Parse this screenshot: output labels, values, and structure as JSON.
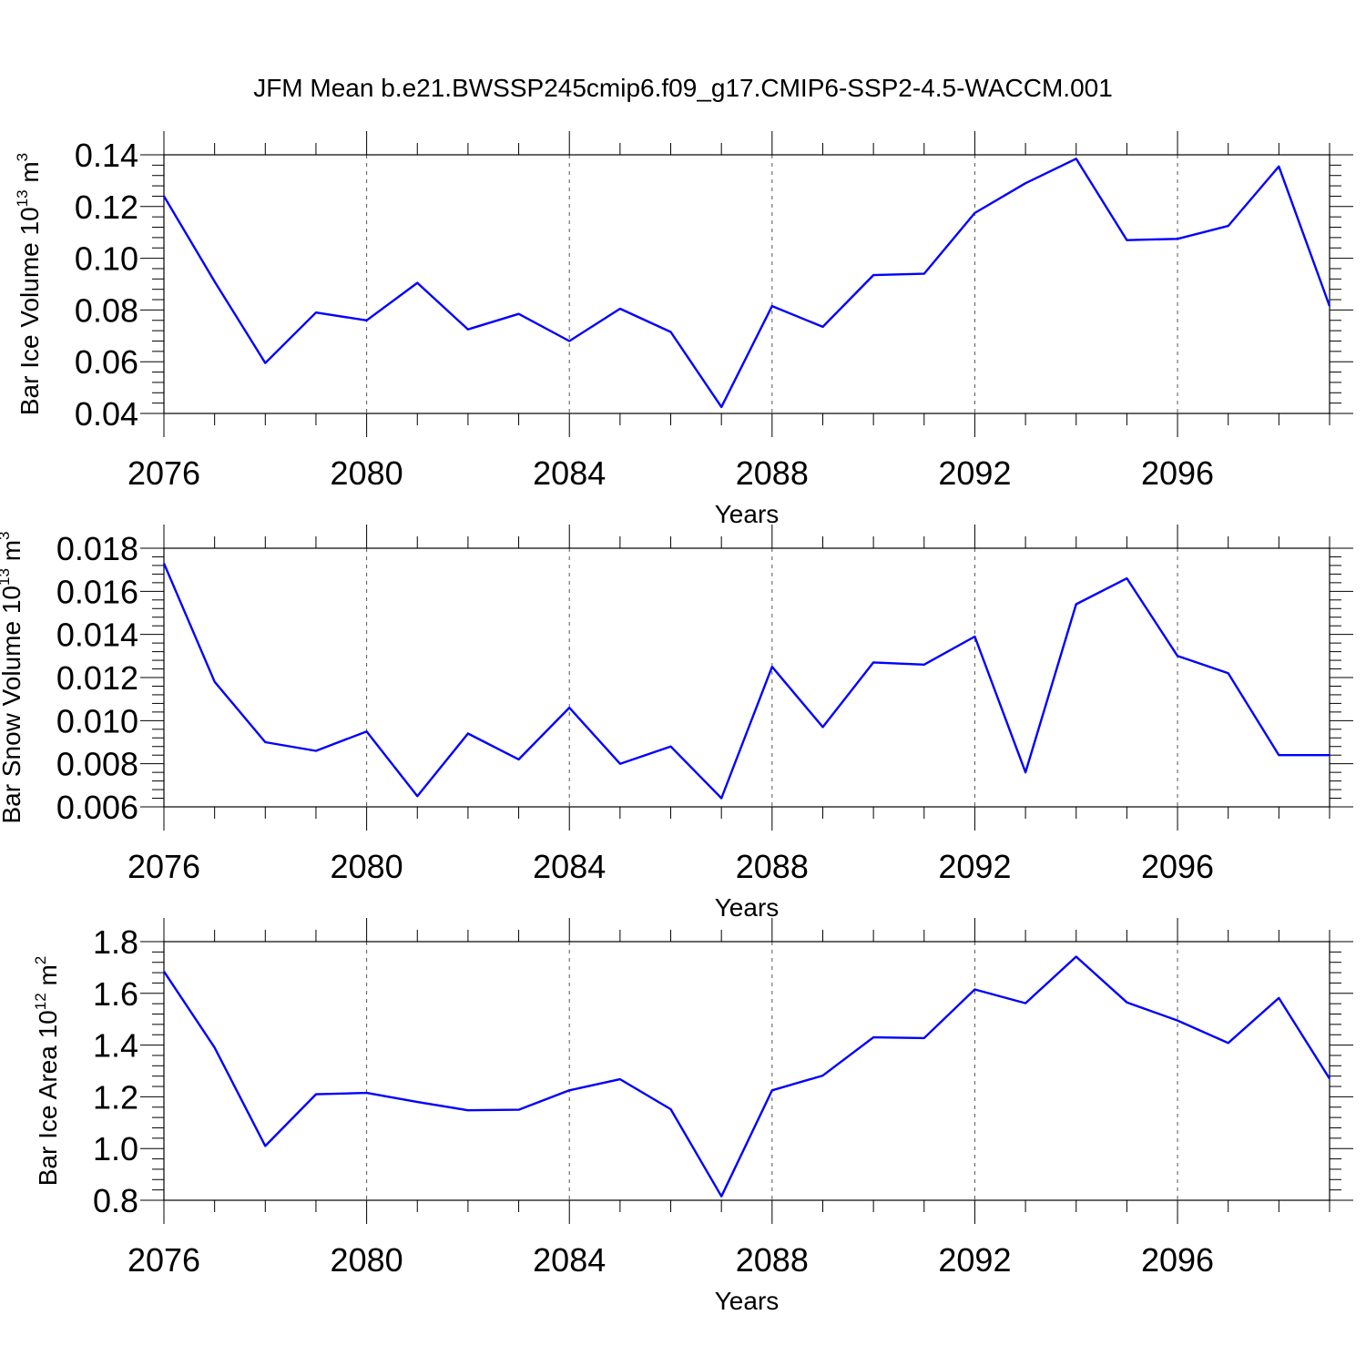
{
  "title": "JFM Mean b.e21.BWSSP245cmip6.f09_g17.CMIP6-SSP2-4.5-WACCM.001",
  "colors": {
    "line": "#0000ff",
    "axis": "#000000",
    "grid": "#555555"
  },
  "chart_data": [
    {
      "type": "line",
      "xlabel": "Years",
      "ylabel": {
        "text": "Bar Ice Volume 10",
        "exp": "13",
        "unit": " m",
        "unit_exp": "3"
      },
      "x": [
        2076,
        2077,
        2078,
        2079,
        2080,
        2081,
        2082,
        2083,
        2084,
        2085,
        2086,
        2087,
        2088,
        2089,
        2090,
        2091,
        2092,
        2093,
        2094,
        2095,
        2096,
        2097,
        2098,
        2099
      ],
      "values": [
        0.124,
        0.091,
        0.0595,
        0.079,
        0.076,
        0.0905,
        0.0725,
        0.0785,
        0.068,
        0.0805,
        0.0715,
        0.0425,
        0.0815,
        0.0735,
        0.0935,
        0.094,
        0.1175,
        0.129,
        0.1385,
        0.107,
        0.1075,
        0.1125,
        0.1355,
        0.0815
      ],
      "xlim": [
        2076,
        2099
      ],
      "ylim": [
        0.04,
        0.14
      ],
      "xticks": [
        "2076",
        "2080",
        "2084",
        "2088",
        "2092",
        "2096"
      ],
      "yticks": [
        "0.04",
        "0.06",
        "0.08",
        "0.10",
        "0.12",
        "0.14"
      ],
      "grid": "vertical dashed at major x ticks"
    },
    {
      "type": "line",
      "xlabel": "Years",
      "ylabel": {
        "text": "Bar Snow Volume 10",
        "exp": "13",
        "unit": " m",
        "unit_exp": "3"
      },
      "x": [
        2076,
        2077,
        2078,
        2079,
        2080,
        2081,
        2082,
        2083,
        2084,
        2085,
        2086,
        2087,
        2088,
        2089,
        2090,
        2091,
        2092,
        2093,
        2094,
        2095,
        2096,
        2097,
        2098,
        2099
      ],
      "values": [
        0.0173,
        0.0118,
        0.009,
        0.0086,
        0.0095,
        0.0065,
        0.0094,
        0.0082,
        0.0106,
        0.008,
        0.0088,
        0.0064,
        0.0125,
        0.0097,
        0.0127,
        0.0126,
        0.0139,
        0.0076,
        0.0154,
        0.0166,
        0.013,
        0.0122,
        0.0084,
        0.0084
      ],
      "xlim": [
        2076,
        2099
      ],
      "ylim": [
        0.006,
        0.018
      ],
      "xticks": [
        "2076",
        "2080",
        "2084",
        "2088",
        "2092",
        "2096"
      ],
      "yticks": [
        "0.006",
        "0.008",
        "0.010",
        "0.012",
        "0.014",
        "0.016",
        "0.018"
      ],
      "grid": "vertical dashed at major x ticks"
    },
    {
      "type": "line",
      "xlabel": "Years",
      "ylabel": {
        "text": "Bar Ice Area 10",
        "exp": "12",
        "unit": " m",
        "unit_exp": "2"
      },
      "x": [
        2076,
        2077,
        2078,
        2079,
        2080,
        2081,
        2082,
        2083,
        2084,
        2085,
        2086,
        2087,
        2088,
        2089,
        2090,
        2091,
        2092,
        2093,
        2094,
        2095,
        2096,
        2097,
        2098,
        2099
      ],
      "values": [
        1.685,
        1.39,
        1.01,
        1.21,
        1.215,
        1.18,
        1.148,
        1.15,
        1.225,
        1.268,
        1.152,
        0.815,
        1.225,
        1.282,
        1.43,
        1.427,
        1.615,
        1.562,
        1.742,
        1.565,
        1.495,
        1.408,
        1.582,
        1.27
      ],
      "xlim": [
        2076,
        2099
      ],
      "ylim": [
        0.8,
        1.8
      ],
      "xticks": [
        "2076",
        "2080",
        "2084",
        "2088",
        "2092",
        "2096"
      ],
      "yticks": [
        "0.8",
        "1.0",
        "1.2",
        "1.4",
        "1.6",
        "1.8"
      ],
      "grid": "vertical dashed at major x ticks"
    }
  ]
}
